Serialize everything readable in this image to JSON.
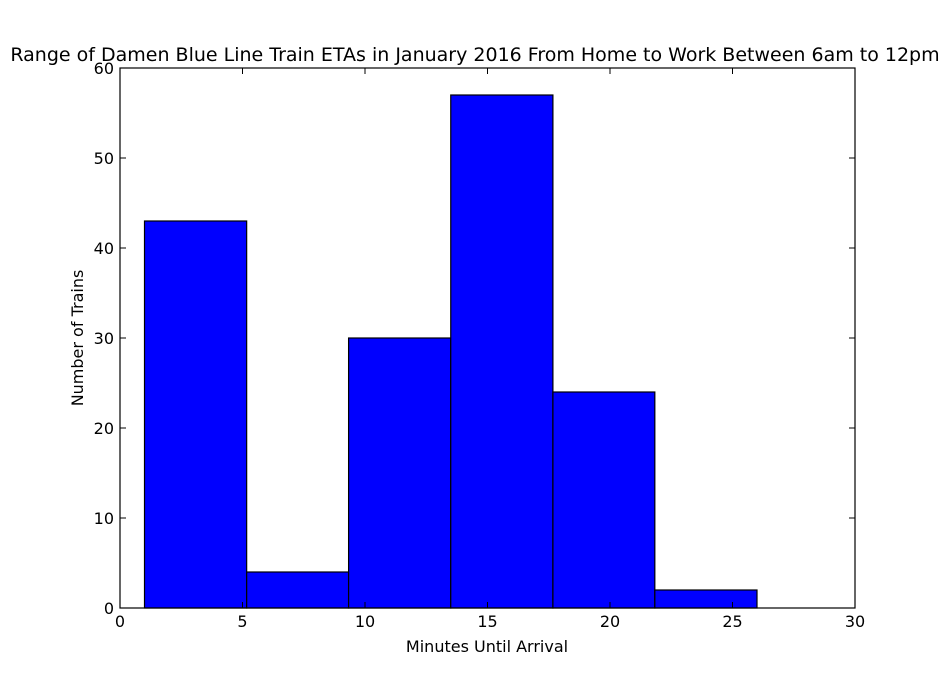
{
  "chart_data": {
    "type": "bar",
    "title": "Range of Damen Blue Line Train ETAs in January 2016 From Home to Work Between 6am to 12pm",
    "xlabel": "Minutes Until Arrival",
    "ylabel": "Number of Trains",
    "xlim": [
      0,
      30
    ],
    "ylim": [
      0,
      60
    ],
    "xticks": [
      0,
      5,
      10,
      15,
      20,
      25,
      30
    ],
    "yticks": [
      0,
      10,
      20,
      30,
      40,
      50,
      60
    ],
    "grid": false,
    "colors": {
      "bar": "#0000ff",
      "edge": "#000000"
    },
    "bins": [
      {
        "start": 1.0,
        "end": 5.17,
        "value": 43
      },
      {
        "start": 5.17,
        "end": 9.33,
        "value": 4
      },
      {
        "start": 9.33,
        "end": 13.5,
        "value": 30
      },
      {
        "start": 13.5,
        "end": 17.67,
        "value": 57
      },
      {
        "start": 17.67,
        "end": 21.83,
        "value": 24
      },
      {
        "start": 21.83,
        "end": 26.0,
        "value": 2
      }
    ]
  }
}
